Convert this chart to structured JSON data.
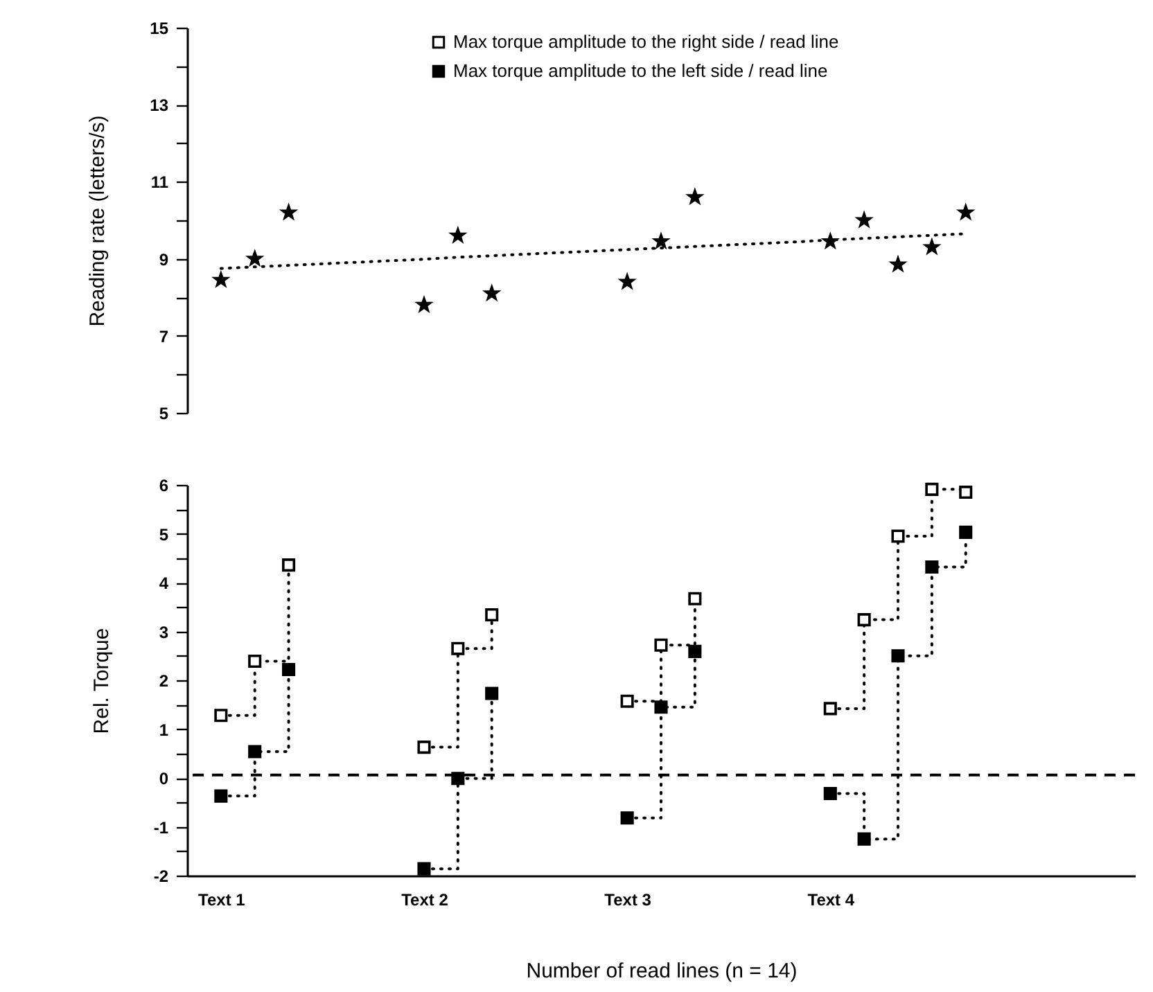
{
  "chart_data": [
    {
      "type": "scatter",
      "ylabel": "Reading rate (letters/s)",
      "marker": "star",
      "tick_labels": "y",
      "categories": [
        null,
        null,
        null,
        null,
        null,
        null,
        null,
        null,
        null,
        null,
        null,
        null,
        null,
        null,
        null,
        null,
        null,
        null,
        null,
        null,
        null,
        null,
        null,
        null,
        null,
        null,
        null
      ],
      "ylim": [
        5,
        15
      ],
      "yticks": [
        5,
        {
          "value": 6,
          "label": null
        },
        7,
        {
          "value": 8,
          "label": null
        },
        9,
        {
          "value": 10,
          "label": null
        },
        11,
        {
          "value": 12,
          "label": null
        },
        13,
        {
          "value": 14,
          "label": null
        },
        15
      ],
      "series": [
        {
          "color": "#000000",
          "values": [
            8.45,
            9.0,
            10.2,
            null,
            null,
            null,
            7.8,
            9.6,
            8.1,
            null,
            null,
            null,
            8.4,
            9.45,
            10.6,
            null,
            null,
            null,
            9.45,
            10.0,
            8.85,
            9.3,
            10.2,
            null,
            null,
            null,
            null
          ]
        },
        {
          "type": "line",
          "color": "#000000",
          "line_style": "dotted",
          "marker": "none",
          "values": [
            8.75,
            8.79,
            8.83,
            8.87,
            8.91,
            8.95,
            8.99,
            9.04,
            9.08,
            9.12,
            9.16,
            9.2,
            9.24,
            9.28,
            9.32,
            9.36,
            9.4,
            9.44,
            9.49,
            9.53,
            9.57,
            9.61,
            9.65,
            null,
            null,
            null,
            null
          ]
        }
      ]
    },
    {
      "type": "step",
      "xlabel": "Number of read lines (n = 14)",
      "ylabel": "Rel. Torque",
      "marker": "square",
      "line_style": "dotted",
      "legend": "top right",
      "categories": [
        "Text 1",
        null,
        null,
        null,
        null,
        null,
        "Text 2",
        null,
        null,
        null,
        null,
        null,
        "Text 3",
        null,
        null,
        null,
        null,
        null,
        "Text 4",
        null,
        null,
        null,
        null,
        null,
        null,
        null,
        null
      ],
      "ylim": [
        -2,
        6
      ],
      "yticks": [
        -2,
        {
          "value": -1.5,
          "label": null
        },
        -1,
        {
          "value": -0.5,
          "label": null
        },
        0,
        {
          "value": 0.5,
          "label": null
        },
        1,
        {
          "value": 1.5,
          "label": null
        },
        2,
        {
          "value": 2.5,
          "label": null
        },
        3,
        {
          "value": 3.5,
          "label": null
        },
        4,
        {
          "value": 4.5,
          "label": null
        },
        5,
        {
          "value": 5.5,
          "label": null
        },
        6
      ],
      "ref_lines": [
        {
          "axis": "y",
          "value": 0.06,
          "line_style": "dashed",
          "color": "#000000"
        }
      ],
      "series": [
        {
          "name": "Max torque amplitude to the right side / read line",
          "color": "#000000",
          "values": [
            1.28,
            2.39,
            4.36,
            null,
            null,
            null,
            0.63,
            2.65,
            3.34,
            null,
            null,
            null,
            1.57,
            2.72,
            3.67,
            null,
            null,
            null,
            1.42,
            3.24,
            4.95,
            5.91,
            5.85,
            null,
            null,
            null,
            null
          ]
        },
        {
          "name": "Max torque amplitude to the  left side / read line",
          "color": "#000000",
          "values": [
            -0.37,
            0.54,
            2.22,
            null,
            null,
            null,
            -1.86,
            -0.01,
            1.73,
            null,
            null,
            null,
            -0.82,
            1.45,
            2.59,
            null,
            null,
            null,
            -0.32,
            -1.25,
            2.5,
            4.32,
            5.03,
            null,
            null,
            null,
            null
          ]
        }
      ]
    }
  ]
}
